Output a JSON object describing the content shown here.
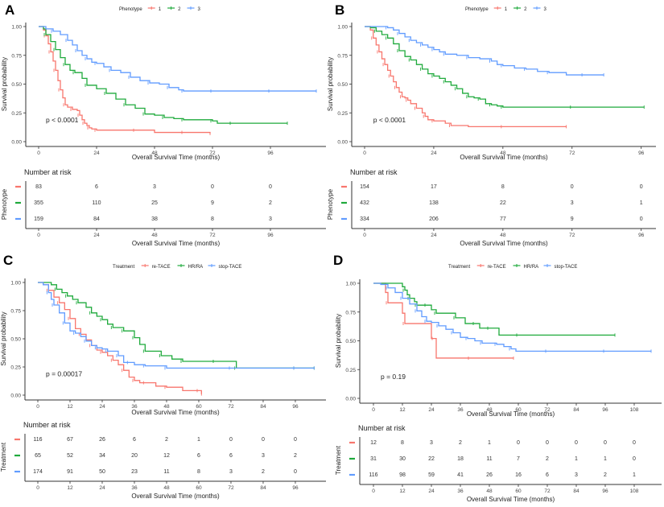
{
  "colors": {
    "red": "#F8766D",
    "green": "#1FAA3C",
    "blue": "#619CFF",
    "axis": "#333333",
    "text": "#222222"
  },
  "chart_data": [
    {
      "panel": "A",
      "type": "line",
      "subtype": "kaplan-meier",
      "legend_title": "Phenotype",
      "legend_position": "top",
      "xlabel": "Overall Survival Time (months)",
      "ylabel": "Survival probability",
      "xlim": [
        0,
        115
      ],
      "ylim": [
        0,
        1
      ],
      "xticks": [
        0,
        24,
        48,
        72,
        96
      ],
      "yticks": [
        "0.00",
        "0.25",
        "0.50",
        "0.75",
        "1.00"
      ],
      "pvalue": "p < 0.0001",
      "series": [
        {
          "name": "1",
          "color": "red",
          "x": [
            0,
            2,
            3,
            4,
            5,
            6,
            7,
            8,
            9,
            10,
            11,
            12,
            14,
            16,
            17,
            18,
            19,
            20,
            21,
            22,
            24,
            30,
            40,
            48,
            60,
            71
          ],
          "y": [
            1,
            0.97,
            0.92,
            0.85,
            0.78,
            0.7,
            0.62,
            0.53,
            0.45,
            0.38,
            0.32,
            0.3,
            0.28,
            0.27,
            0.23,
            0.19,
            0.16,
            0.14,
            0.12,
            0.11,
            0.1,
            0.1,
            0.1,
            0.08,
            0.08,
            0.07
          ]
        },
        {
          "name": "2",
          "color": "green",
          "x": [
            0,
            2,
            3,
            5,
            7,
            9,
            11,
            13,
            15,
            18,
            20,
            24,
            28,
            32,
            36,
            40,
            44,
            48,
            52,
            56,
            60,
            66,
            72,
            74,
            80,
            90,
            103
          ],
          "y": [
            1,
            0.98,
            0.93,
            0.87,
            0.8,
            0.73,
            0.67,
            0.62,
            0.6,
            0.55,
            0.49,
            0.46,
            0.42,
            0.37,
            0.32,
            0.29,
            0.24,
            0.23,
            0.21,
            0.2,
            0.19,
            0.19,
            0.18,
            0.16,
            0.16,
            0.16,
            0.16
          ]
        },
        {
          "name": "3",
          "color": "blue",
          "x": [
            0,
            3,
            6,
            9,
            12,
            14,
            16,
            18,
            20,
            22,
            24,
            27,
            30,
            34,
            38,
            42,
            46,
            50,
            54,
            58,
            60,
            66,
            72,
            84,
            96,
            108,
            115
          ],
          "y": [
            1,
            0.98,
            0.96,
            0.93,
            0.88,
            0.84,
            0.79,
            0.75,
            0.72,
            0.69,
            0.68,
            0.65,
            0.62,
            0.6,
            0.56,
            0.53,
            0.51,
            0.5,
            0.47,
            0.45,
            0.44,
            0.44,
            0.44,
            0.44,
            0.44,
            0.44,
            0.44
          ]
        }
      ],
      "risk_table": {
        "title": "Number at risk",
        "row_label": "Phenotype",
        "times": [
          0,
          24,
          48,
          72,
          96
        ],
        "rows": [
          {
            "name": "1",
            "color": "red",
            "values": [
              83,
              6,
              3,
              0,
              0
            ]
          },
          {
            "name": "2",
            "color": "green",
            "values": [
              355,
              110,
              25,
              9,
              2
            ]
          },
          {
            "name": "3",
            "color": "blue",
            "values": [
              159,
              84,
              38,
              8,
              3
            ]
          }
        ]
      }
    },
    {
      "panel": "B",
      "type": "line",
      "subtype": "kaplan-meier",
      "legend_title": "Phenotype",
      "legend_position": "top",
      "xlabel": "Overall Survival Time (months)",
      "ylabel": "Survival probability",
      "xlim": [
        0,
        97
      ],
      "ylim": [
        0,
        1
      ],
      "xticks": [
        0,
        24,
        48,
        72,
        96
      ],
      "yticks": [
        "0.00",
        "0.25",
        "0.50",
        "0.75",
        "1.00"
      ],
      "pvalue": "p < 0.0001",
      "series": [
        {
          "name": "1",
          "color": "red",
          "x": [
            0,
            2,
            3,
            4,
            5,
            6,
            7,
            8,
            9,
            10,
            11,
            12,
            13,
            14,
            15,
            16,
            18,
            20,
            21,
            22,
            24,
            28,
            30,
            36,
            48,
            60,
            70
          ],
          "y": [
            1,
            0.97,
            0.9,
            0.84,
            0.78,
            0.72,
            0.67,
            0.62,
            0.57,
            0.52,
            0.47,
            0.43,
            0.39,
            0.38,
            0.36,
            0.33,
            0.29,
            0.25,
            0.22,
            0.19,
            0.18,
            0.16,
            0.14,
            0.13,
            0.13,
            0.13,
            0.13
          ]
        },
        {
          "name": "2",
          "color": "green",
          "x": [
            0,
            2,
            4,
            6,
            8,
            10,
            12,
            14,
            16,
            18,
            20,
            22,
            24,
            26,
            28,
            30,
            32,
            34,
            36,
            38,
            40,
            42,
            44,
            46,
            48,
            60,
            72,
            97
          ],
          "y": [
            1,
            0.99,
            0.96,
            0.93,
            0.9,
            0.85,
            0.79,
            0.74,
            0.71,
            0.67,
            0.63,
            0.59,
            0.57,
            0.55,
            0.52,
            0.49,
            0.46,
            0.42,
            0.39,
            0.38,
            0.37,
            0.33,
            0.32,
            0.31,
            0.3,
            0.3,
            0.3,
            0.3
          ]
        },
        {
          "name": "3",
          "color": "blue",
          "x": [
            0,
            4,
            8,
            10,
            12,
            14,
            16,
            18,
            20,
            22,
            24,
            26,
            28,
            32,
            36,
            40,
            44,
            46,
            48,
            52,
            56,
            60,
            64,
            70,
            76,
            83
          ],
          "y": [
            1,
            1,
            0.99,
            0.97,
            0.94,
            0.91,
            0.88,
            0.86,
            0.84,
            0.82,
            0.8,
            0.78,
            0.76,
            0.75,
            0.73,
            0.72,
            0.7,
            0.67,
            0.66,
            0.64,
            0.63,
            0.61,
            0.6,
            0.58,
            0.58,
            0.58
          ]
        }
      ],
      "risk_table": {
        "title": "Number at risk",
        "row_label": "Phenotype",
        "times": [
          0,
          24,
          48,
          72,
          96
        ],
        "rows": [
          {
            "name": "1",
            "color": "red",
            "values": [
              154,
              17,
              8,
              0,
              0
            ]
          },
          {
            "name": "2",
            "color": "green",
            "values": [
              432,
              138,
              22,
              3,
              1
            ]
          },
          {
            "name": "3",
            "color": "blue",
            "values": [
              334,
              206,
              77,
              9,
              0
            ]
          }
        ]
      }
    },
    {
      "panel": "C",
      "type": "line",
      "subtype": "kaplan-meier",
      "legend_title": "Treatment",
      "legend_position": "top",
      "xlabel": "Overall Survival Time (months)",
      "ylabel": "Survival probability",
      "xlim": [
        0,
        103
      ],
      "ylim": [
        0,
        1
      ],
      "xticks": [
        0,
        12,
        24,
        36,
        48,
        60,
        72,
        84,
        96
      ],
      "yticks": [
        "0.00",
        "0.25",
        "0.50",
        "0.75",
        "1.00"
      ],
      "pvalue": "p = 0.00017",
      "series": [
        {
          "name": "re-TACE",
          "color": "red",
          "x": [
            0,
            2,
            4,
            6,
            8,
            10,
            12,
            14,
            16,
            18,
            20,
            22,
            24,
            26,
            28,
            30,
            32,
            34,
            36,
            38,
            40,
            44,
            48,
            54,
            60,
            61
          ],
          "y": [
            1,
            0.98,
            0.93,
            0.87,
            0.82,
            0.76,
            0.68,
            0.59,
            0.54,
            0.49,
            0.44,
            0.4,
            0.38,
            0.35,
            0.31,
            0.27,
            0.22,
            0.16,
            0.13,
            0.11,
            0.11,
            0.08,
            0.07,
            0.04,
            0.04,
            0.01
          ]
        },
        {
          "name": "HR/RA",
          "color": "green",
          "x": [
            0,
            5,
            7,
            9,
            11,
            13,
            15,
            18,
            20,
            22,
            24,
            26,
            28,
            30,
            32,
            34,
            36,
            38,
            40,
            42,
            46,
            50,
            54,
            60,
            66,
            73,
            74,
            84,
            96,
            103
          ],
          "y": [
            1,
            0.98,
            0.94,
            0.91,
            0.88,
            0.85,
            0.82,
            0.78,
            0.73,
            0.7,
            0.67,
            0.63,
            0.6,
            0.6,
            0.57,
            0.57,
            0.51,
            0.45,
            0.39,
            0.39,
            0.35,
            0.32,
            0.3,
            0.3,
            0.3,
            0.3,
            0.24,
            0.24,
            0.24,
            0.24
          ]
        },
        {
          "name": "stop-TACE",
          "color": "blue",
          "x": [
            0,
            2,
            4,
            5,
            6,
            8,
            10,
            12,
            14,
            16,
            18,
            20,
            22,
            24,
            26,
            28,
            30,
            32,
            34,
            36,
            40,
            44,
            48,
            60,
            72,
            84,
            96,
            103
          ],
          "y": [
            1,
            0.98,
            0.91,
            0.85,
            0.8,
            0.73,
            0.64,
            0.57,
            0.55,
            0.52,
            0.48,
            0.44,
            0.42,
            0.41,
            0.39,
            0.39,
            0.35,
            0.29,
            0.29,
            0.27,
            0.26,
            0.26,
            0.24,
            0.24,
            0.24,
            0.24,
            0.24,
            0.24
          ]
        }
      ],
      "risk_table": {
        "title": "Number at risk",
        "row_label": "Treatment",
        "times": [
          0,
          12,
          24,
          36,
          48,
          60,
          72,
          84,
          96
        ],
        "rows": [
          {
            "name": "re-TACE",
            "color": "red",
            "values": [
              116,
              67,
              26,
              6,
              2,
              1,
              0,
              0,
              0
            ]
          },
          {
            "name": "HR/RA",
            "color": "green",
            "values": [
              65,
              52,
              34,
              20,
              12,
              6,
              6,
              3,
              2
            ]
          },
          {
            "name": "stop-TACE",
            "color": "blue",
            "values": [
              174,
              91,
              50,
              23,
              11,
              8,
              3,
              2,
              0
            ]
          }
        ]
      }
    },
    {
      "panel": "D",
      "type": "line",
      "subtype": "kaplan-meier",
      "legend_title": "Treatment",
      "legend_position": "top",
      "xlabel": "Overall Survival Time (months)",
      "ylabel": "Survival probability",
      "xlim": [
        0,
        115
      ],
      "ylim": [
        0,
        1
      ],
      "xticks": [
        0,
        12,
        24,
        36,
        48,
        60,
        72,
        84,
        96,
        108
      ],
      "yticks": [
        "0.00",
        "0.25",
        "0.50",
        "0.75",
        "1.00"
      ],
      "pvalue": "p = 0.19",
      "series": [
        {
          "name": "re-TACE",
          "color": "red",
          "x": [
            0,
            5,
            6,
            12,
            13,
            24,
            25,
            26,
            40,
            58
          ],
          "y": [
            1,
            0.92,
            0.83,
            0.74,
            0.65,
            0.52,
            0.52,
            0.35,
            0.35,
            0.35
          ]
        },
        {
          "name": "HR/RA",
          "color": "green",
          "x": [
            0,
            12,
            13,
            14,
            15,
            17,
            18,
            20,
            22,
            24,
            26,
            30,
            34,
            38,
            42,
            44,
            48,
            52,
            60,
            72,
            100
          ],
          "y": [
            1,
            0.97,
            0.94,
            0.9,
            0.87,
            0.84,
            0.81,
            0.81,
            0.81,
            0.77,
            0.74,
            0.74,
            0.7,
            0.65,
            0.65,
            0.61,
            0.61,
            0.55,
            0.55,
            0.55,
            0.55
          ]
        },
        {
          "name": "stop-TACE",
          "color": "blue",
          "x": [
            0,
            3,
            6,
            9,
            12,
            15,
            18,
            20,
            22,
            24,
            27,
            30,
            33,
            36,
            39,
            42,
            45,
            48,
            51,
            54,
            57,
            59,
            72,
            84,
            96,
            115
          ],
          "y": [
            1,
            0.99,
            0.96,
            0.92,
            0.87,
            0.82,
            0.76,
            0.71,
            0.67,
            0.66,
            0.63,
            0.6,
            0.57,
            0.53,
            0.52,
            0.5,
            0.48,
            0.48,
            0.47,
            0.45,
            0.43,
            0.41,
            0.41,
            0.41,
            0.41,
            0.41
          ]
        }
      ],
      "risk_table": {
        "title": "Number at risk",
        "row_label": "Treatment",
        "times": [
          0,
          12,
          24,
          36,
          48,
          60,
          72,
          84,
          96,
          108
        ],
        "rows": [
          {
            "name": "re-TACE",
            "color": "red",
            "values": [
              12,
              8,
              3,
              2,
              1,
              0,
              0,
              0,
              0,
              0
            ]
          },
          {
            "name": "HR/RA",
            "color": "green",
            "values": [
              31,
              30,
              22,
              18,
              11,
              7,
              2,
              1,
              1,
              0
            ]
          },
          {
            "name": "stop-TACE",
            "color": "blue",
            "values": [
              116,
              98,
              59,
              41,
              26,
              16,
              6,
              3,
              2,
              1
            ]
          }
        ]
      }
    }
  ]
}
